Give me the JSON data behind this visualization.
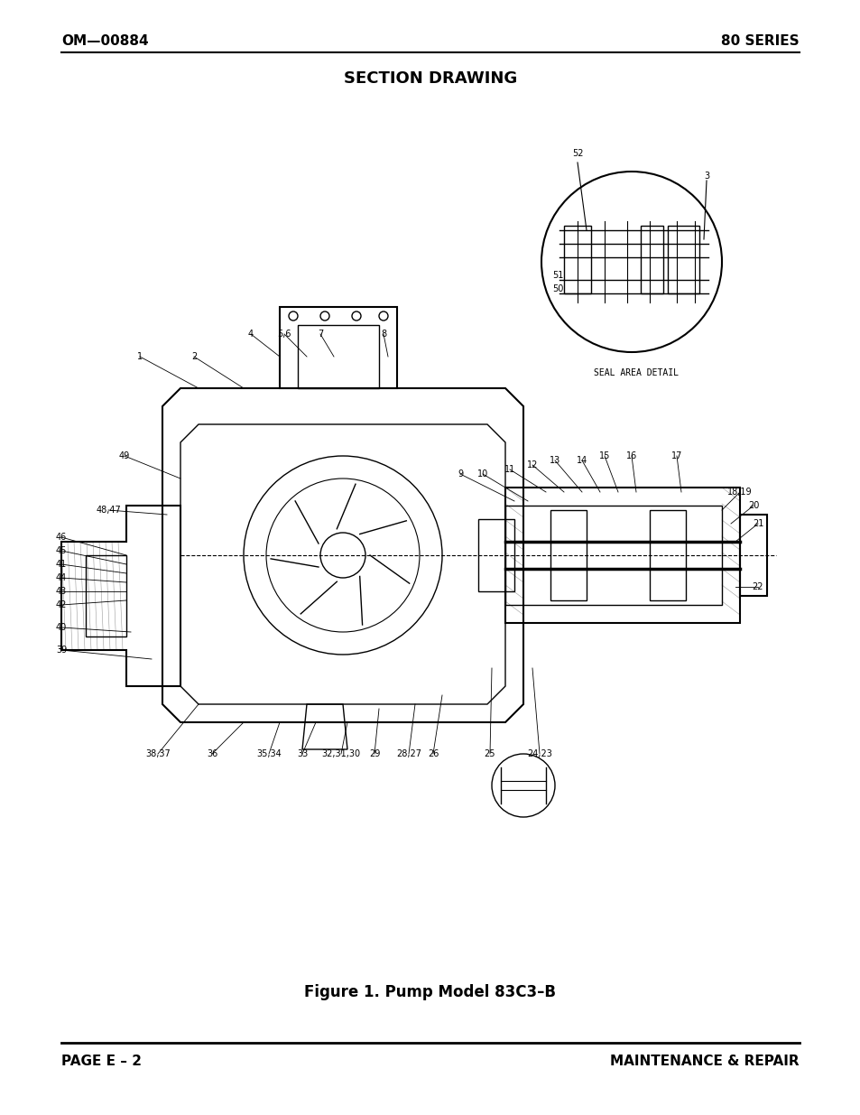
{
  "page_title": "SECTION DRAWING",
  "header_left": "OM—00884",
  "header_right": "80 SERIES",
  "footer_left": "PAGE E – 2",
  "footer_right": "MAINTENANCE & REPAIR",
  "figure_caption": "Figure 1. Pump Model 83C3–B",
  "bg_color": "#ffffff",
  "text_color": "#000000",
  "header_fontsize": 11,
  "title_fontsize": 13,
  "caption_fontsize": 12,
  "footer_fontsize": 11
}
